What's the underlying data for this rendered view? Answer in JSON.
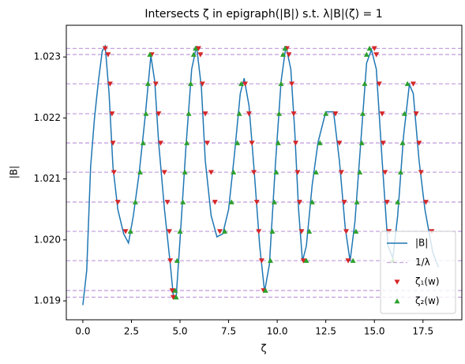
{
  "chart_data": {
    "type": "line",
    "title": "Intersects ζ in epigraph(|B|) s.t. λ|B|(ζ) = 1",
    "xlabel": "ζ",
    "ylabel": "|B|",
    "xlim": [
      -0.85,
      19.5
    ],
    "ylim": [
      1.01869,
      1.02352
    ],
    "xticks": [
      {
        "value": 0,
        "label": "0.0"
      },
      2.5,
      {
        "value": 5,
        "label": "5.0"
      },
      7.5,
      {
        "value": 10,
        "label": "10.0"
      },
      12.5,
      {
        "value": 15,
        "label": "15.0"
      },
      17.5
    ],
    "yticks": [
      1.019,
      {
        "value": 1.02,
        "label": "1.020"
      },
      1.021,
      1.022,
      1.023
    ],
    "legend": "lower right",
    "series": [
      {
        "name": "|B|",
        "color": "#1f77b4",
        "style": "line",
        "x": [
          0.0,
          0.2,
          0.4,
          0.6,
          0.8,
          1.0,
          1.15,
          1.35,
          1.55,
          1.8,
          2.1,
          2.35,
          2.6,
          2.9,
          3.2,
          3.5,
          3.7,
          3.9,
          4.2,
          4.5,
          4.65,
          4.8,
          5.0,
          5.3,
          5.6,
          5.85,
          6.1,
          6.3,
          6.6,
          6.9,
          7.2,
          7.5,
          7.8,
          8.1,
          8.3,
          8.55,
          8.8,
          9.1,
          9.35,
          9.6,
          9.9,
          10.2,
          10.45,
          10.7,
          10.9,
          11.1,
          11.3,
          11.5,
          11.8,
          12.1,
          12.5,
          12.9,
          13.2,
          13.5,
          13.75,
          14.0,
          14.3,
          14.6,
          14.85,
          15.1,
          15.4,
          15.7,
          15.95,
          16.2,
          16.5,
          16.8,
          17.0,
          17.3,
          17.6,
          18.0,
          18.3
        ],
        "values": [
          1.01893,
          1.0195,
          1.0212,
          1.022,
          1.0226,
          1.0231,
          1.02318,
          1.0224,
          1.0212,
          1.0205,
          1.0201,
          1.01995,
          1.0204,
          1.0211,
          1.022,
          1.02302,
          1.0226,
          1.0216,
          1.0205,
          1.0196,
          1.0191,
          1.01905,
          1.02,
          1.0215,
          1.0228,
          1.02318,
          1.0225,
          1.0213,
          1.0204,
          1.02005,
          1.0201,
          1.0205,
          1.0214,
          1.0224,
          1.02265,
          1.0222,
          1.0212,
          1.0199,
          1.01915,
          1.0196,
          1.0212,
          1.0226,
          1.02318,
          1.0228,
          1.0218,
          1.0205,
          1.01965,
          1.0199,
          1.0209,
          1.0216,
          1.0221,
          1.0221,
          1.0213,
          1.0202,
          1.01965,
          1.0203,
          1.0216,
          1.0229,
          1.02312,
          1.0228,
          1.0213,
          1.0199,
          1.0197,
          1.0204,
          1.0217,
          1.02255,
          1.0224,
          1.0213,
          1.0205,
          1.0198,
          1.01955
        ]
      },
      {
        "name": "1/λ",
        "color": "#c5a3dd",
        "style": "hline",
        "values": [
          1.02314,
          1.02304,
          1.02256,
          1.02207,
          1.02159,
          1.02111,
          1.02062,
          1.02014,
          1.01966,
          1.01917,
          1.01906
        ]
      },
      {
        "name": "ζ₁(w)",
        "color": "#d62728",
        "style": "scatter",
        "marker": "v",
        "x": [
          1.15,
          1.3,
          1.4,
          1.5,
          1.55,
          1.6,
          1.8,
          2.2,
          3.55,
          3.75,
          3.9,
          4.0,
          4.2,
          4.35,
          4.45,
          4.5,
          4.6,
          4.65,
          5.95,
          6.05,
          6.15,
          6.3,
          6.4,
          6.6,
          6.8,
          7.05,
          8.35,
          8.55,
          8.7,
          8.8,
          8.95,
          9.05,
          9.2,
          9.3,
          10.5,
          10.6,
          10.75,
          10.85,
          10.95,
          11.05,
          11.15,
          11.25,
          11.35,
          13.0,
          13.2,
          13.3,
          13.45,
          13.55,
          13.65,
          15.0,
          15.1,
          15.25,
          15.4,
          15.45,
          15.55,
          15.65,
          15.75,
          17.0,
          17.15,
          17.3,
          17.4,
          17.65,
          17.95
        ],
        "values": [
          1.02314,
          1.02304,
          1.02256,
          1.02207,
          1.02159,
          1.02111,
          1.02062,
          1.02014,
          1.02304,
          1.02256,
          1.02207,
          1.02159,
          1.02111,
          1.02062,
          1.02014,
          1.01966,
          1.01917,
          1.01906,
          1.02314,
          1.02304,
          1.02256,
          1.02207,
          1.02159,
          1.02111,
          1.02062,
          1.02014,
          1.02256,
          1.02207,
          1.02159,
          1.02111,
          1.02062,
          1.02014,
          1.01966,
          1.01917,
          1.02314,
          1.02304,
          1.02256,
          1.02207,
          1.02159,
          1.02111,
          1.02062,
          1.02014,
          1.01966,
          1.02207,
          1.02159,
          1.02111,
          1.02062,
          1.02014,
          1.01966,
          1.02314,
          1.02304,
          1.02256,
          1.02207,
          1.02159,
          1.02111,
          1.02062,
          1.02014,
          1.02256,
          1.02207,
          1.02159,
          1.02111,
          1.02062,
          1.02014
        ]
      },
      {
        "name": "ζ₂(w)",
        "color": "#2ca02c",
        "style": "scatter",
        "marker": "^",
        "x": [
          2.45,
          2.7,
          2.95,
          3.1,
          3.25,
          3.35,
          3.45,
          4.75,
          4.8,
          4.85,
          5.0,
          5.15,
          5.25,
          5.35,
          5.45,
          5.55,
          5.7,
          5.8,
          7.3,
          7.65,
          7.75,
          7.95,
          8.05,
          8.15,
          9.4,
          9.65,
          9.75,
          9.85,
          9.95,
          10.05,
          10.1,
          10.2,
          10.3,
          10.4,
          11.5,
          11.65,
          11.8,
          12.0,
          12.2,
          12.5,
          13.9,
          14.05,
          14.1,
          14.25,
          14.35,
          14.4,
          14.5,
          14.6,
          14.75,
          15.95,
          16.2,
          16.35,
          16.45,
          16.55,
          16.7
        ],
        "values": [
          1.02014,
          1.02062,
          1.02111,
          1.02159,
          1.02207,
          1.02256,
          1.02304,
          1.01917,
          1.01906,
          1.01966,
          1.02014,
          1.02062,
          1.02111,
          1.02159,
          1.02207,
          1.02256,
          1.02304,
          1.02314,
          1.02014,
          1.02062,
          1.02111,
          1.02159,
          1.02207,
          1.02256,
          1.01917,
          1.01966,
          1.02014,
          1.02062,
          1.02111,
          1.02159,
          1.02207,
          1.02256,
          1.02304,
          1.02314,
          1.01966,
          1.02014,
          1.02062,
          1.02111,
          1.02159,
          1.02207,
          1.01966,
          1.02014,
          1.02062,
          1.02111,
          1.02159,
          1.02207,
          1.02256,
          1.02304,
          1.02314,
          1.01966,
          1.02062,
          1.02111,
          1.02159,
          1.02207,
          1.02256
        ]
      }
    ]
  }
}
